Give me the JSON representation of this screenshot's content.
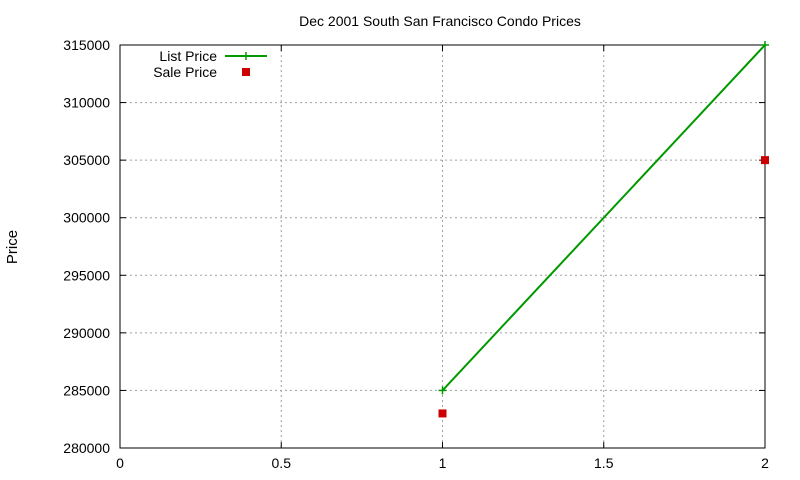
{
  "chart_data": {
    "type": "line",
    "title": "Dec 2001 South San Francisco Condo Prices",
    "xlabel": "",
    "ylabel": "Price",
    "xlim": [
      0,
      2
    ],
    "ylim": [
      280000,
      315000
    ],
    "x_ticks": [
      0,
      0.5,
      1,
      1.5,
      2
    ],
    "y_ticks": [
      280000,
      285000,
      290000,
      295000,
      300000,
      305000,
      310000,
      315000
    ],
    "x_tick_labels": [
      "0",
      "0.5",
      "1",
      "1.5",
      "2"
    ],
    "y_tick_labels": [
      "280000",
      "285000",
      "290000",
      "295000",
      "300000",
      "305000",
      "310000",
      "315000"
    ],
    "grid": true,
    "legend_position": "top-left",
    "series": [
      {
        "name": "List Price",
        "style": "linespoints",
        "marker": "plus",
        "color": "#009900",
        "x": [
          1,
          2
        ],
        "y": [
          285000,
          315000
        ]
      },
      {
        "name": "Sale Price",
        "style": "points",
        "marker": "square",
        "color": "#cc0000",
        "x": [
          1,
          2
        ],
        "y": [
          283000,
          305000
        ]
      }
    ]
  }
}
